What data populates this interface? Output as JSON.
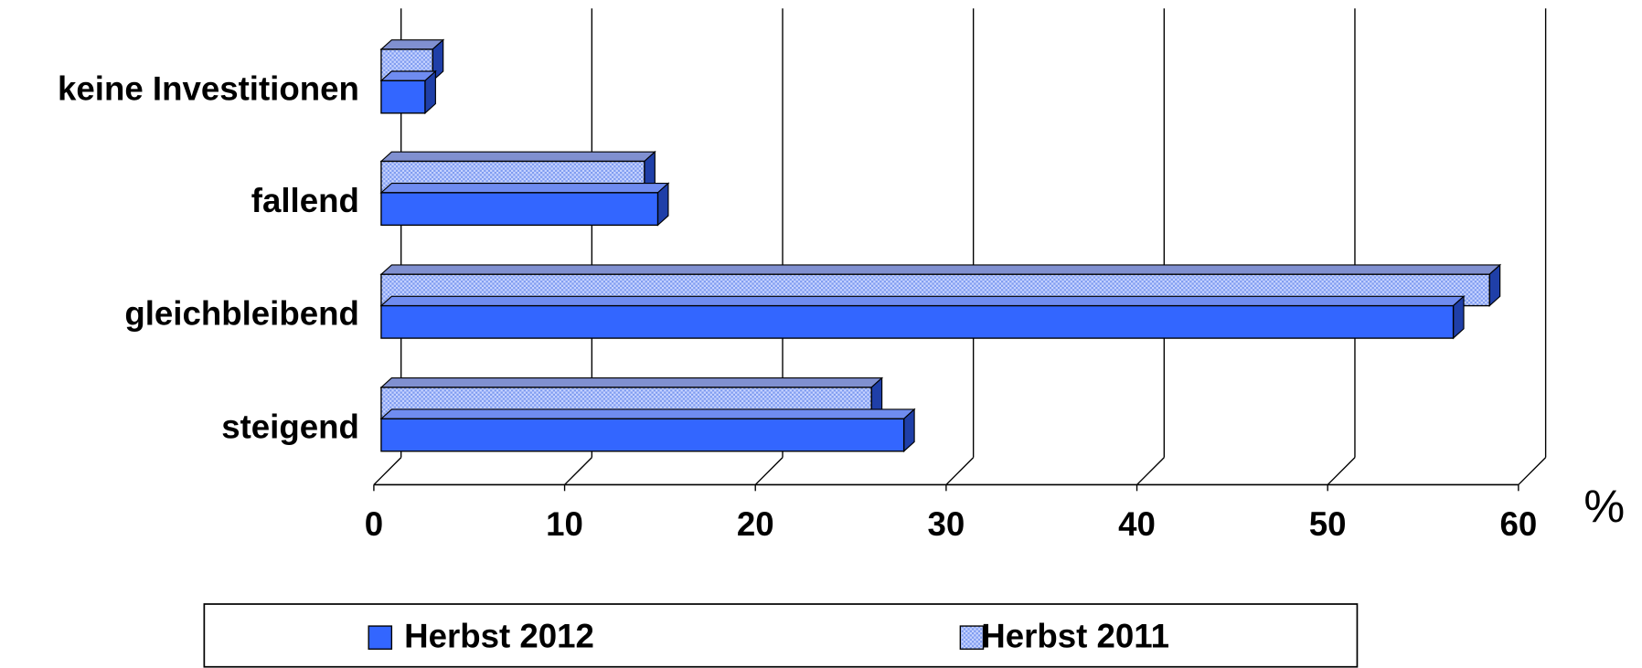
{
  "chart_data": {
    "type": "bar",
    "orientation": "horizontal",
    "three_d": true,
    "categories": [
      "keine Investitionen",
      "fallend",
      "gleichbleibend",
      "steigend"
    ],
    "series": [
      {
        "name": "Herbst 2012",
        "color": "#3366ff",
        "values": [
          2.3,
          14.5,
          56.2,
          27.4
        ]
      },
      {
        "name": "Herbst 2011",
        "color": "#a8bcff",
        "values": [
          2.7,
          13.8,
          58.1,
          25.7
        ]
      }
    ],
    "xlabel": "%",
    "xlim": [
      0,
      60
    ],
    "xticks": [
      0,
      10,
      20,
      30,
      40,
      50,
      60
    ],
    "grid": true,
    "legend": "bottom"
  }
}
